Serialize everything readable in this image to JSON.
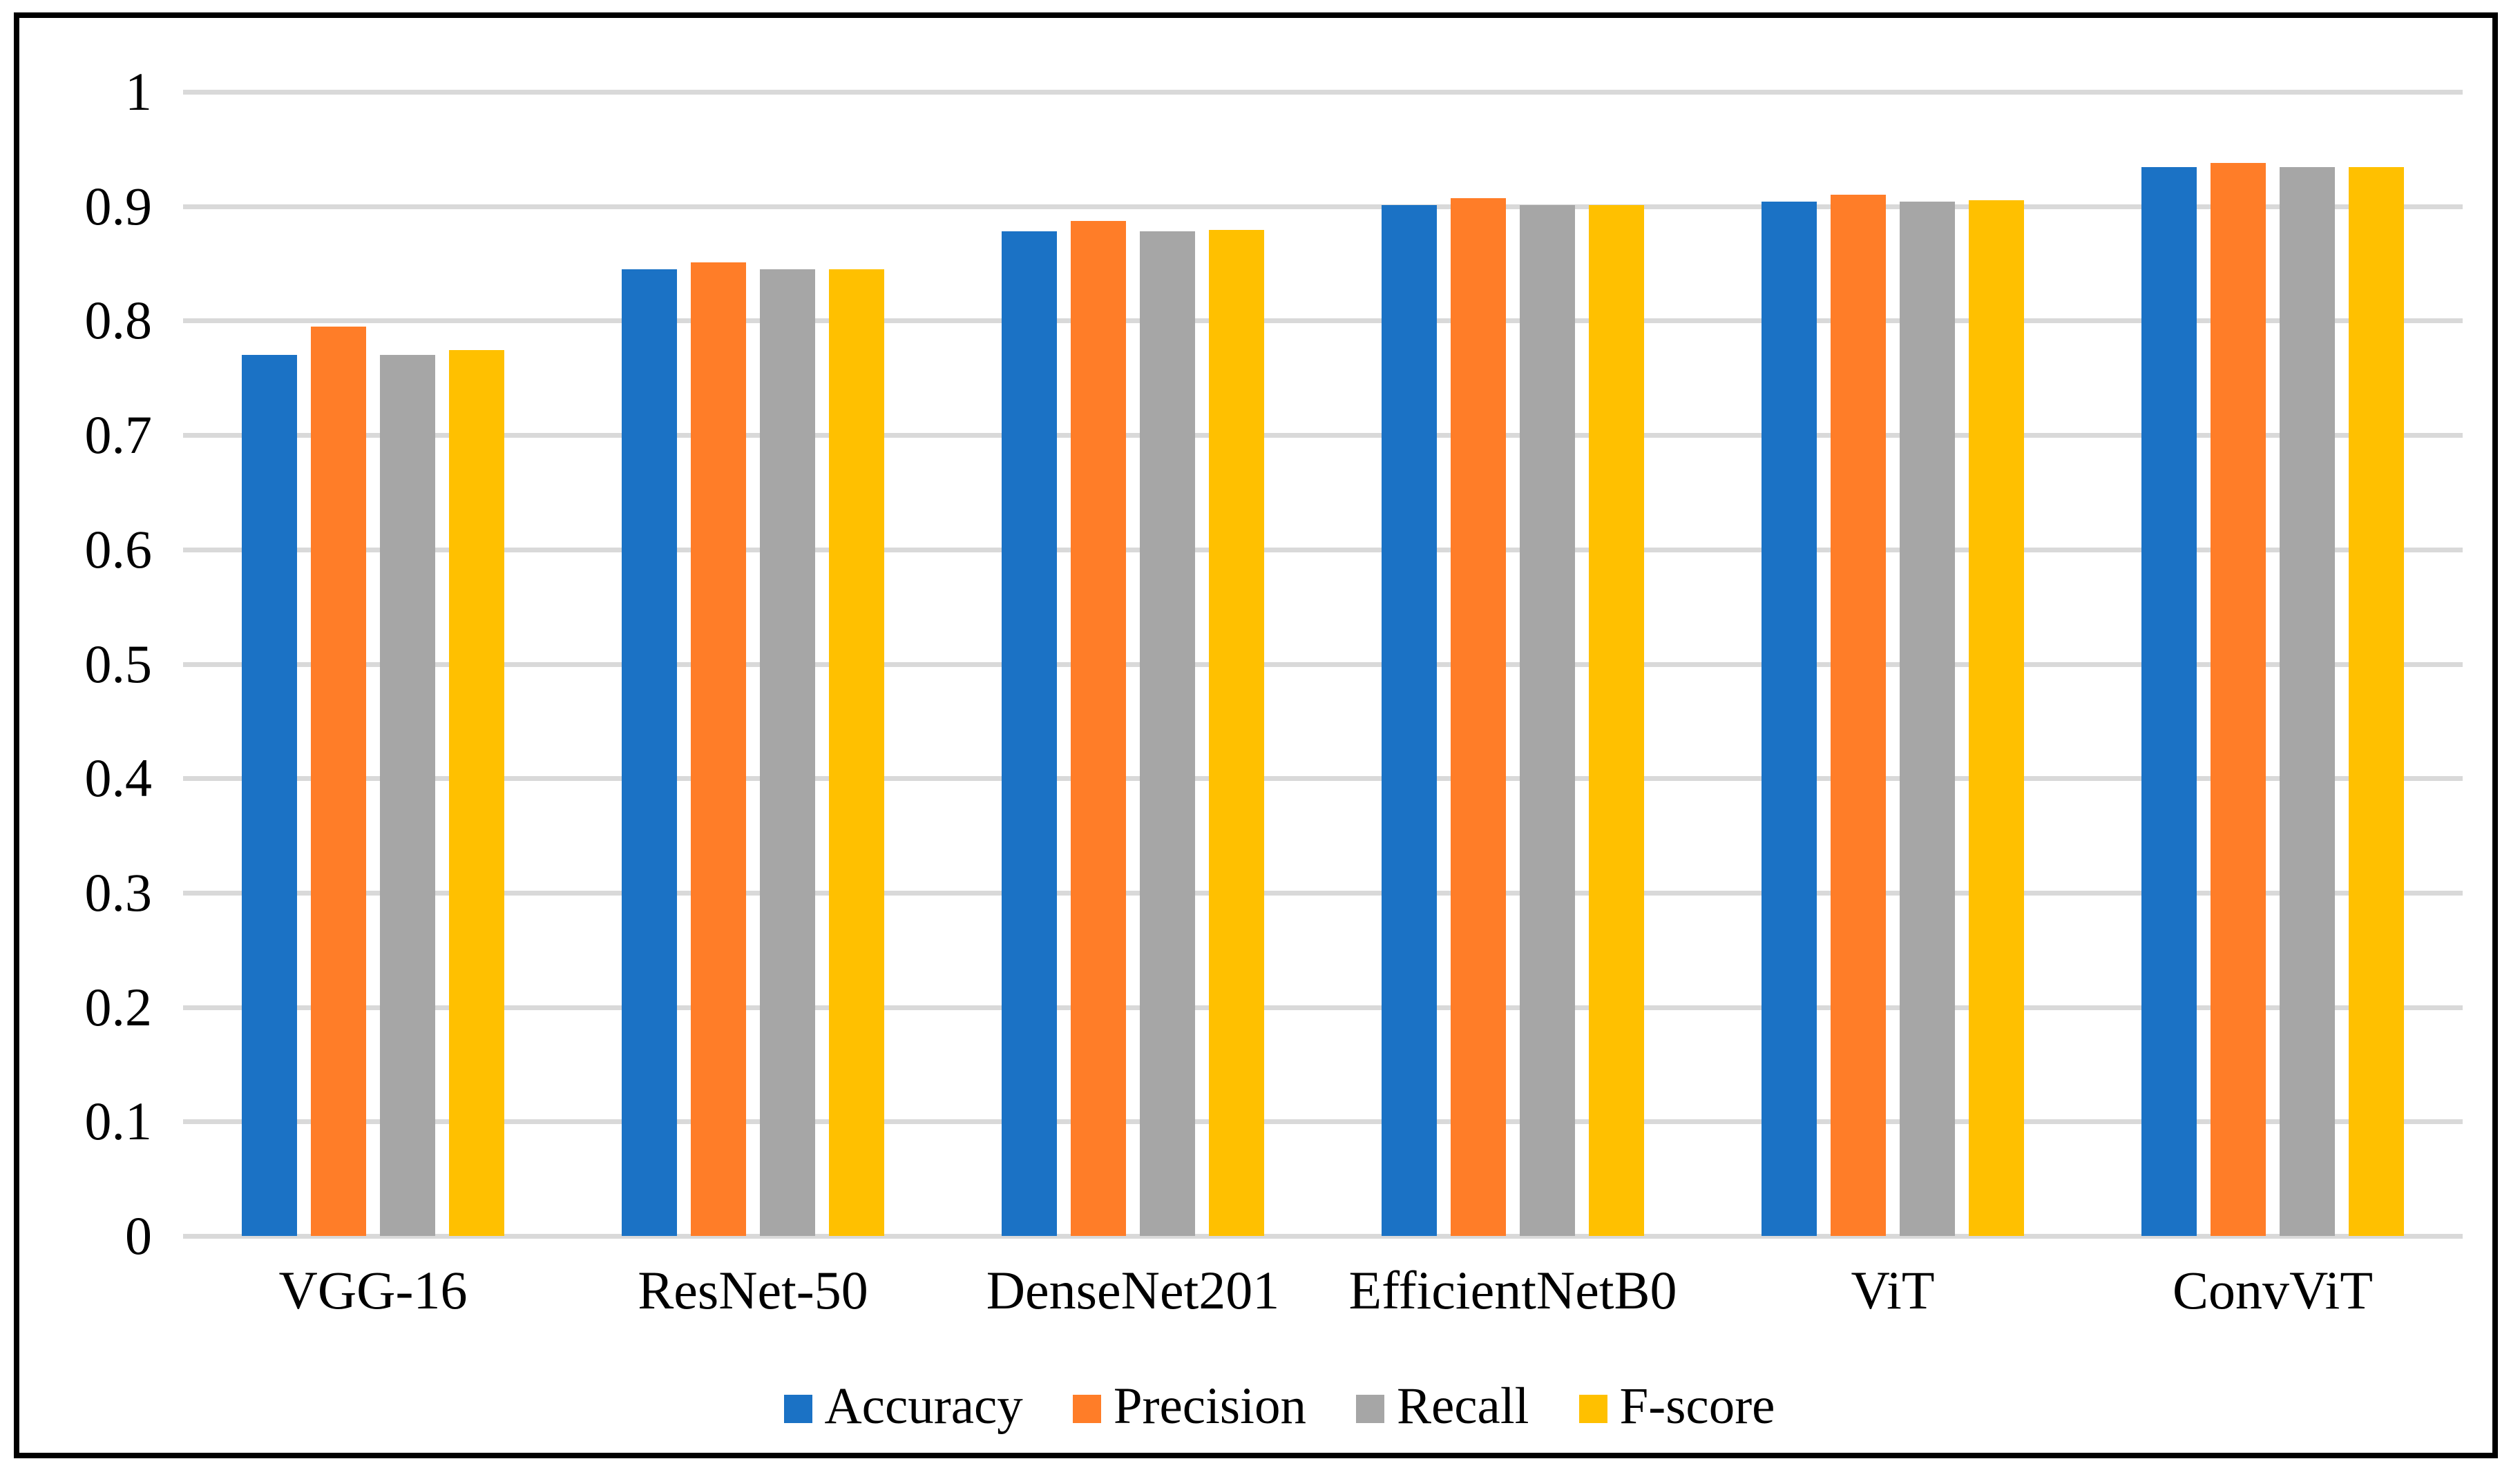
{
  "chart_data": {
    "type": "bar",
    "title": "",
    "xlabel": "",
    "ylabel": "",
    "categories": [
      "VGG-16",
      "ResNet-50",
      "DenseNet201",
      "EfficientNetB0",
      "ViT",
      "ConvViT"
    ],
    "series": [
      {
        "name": "Accuracy",
        "color": "#1B72C5",
        "values": [
          0.77,
          0.845,
          0.878,
          0.901,
          0.904,
          0.934
        ]
      },
      {
        "name": "Precision",
        "color": "#FF7D28",
        "values": [
          0.795,
          0.851,
          0.887,
          0.907,
          0.91,
          0.938
        ]
      },
      {
        "name": "Recall",
        "color": "#A6A6A6",
        "values": [
          0.77,
          0.845,
          0.878,
          0.901,
          0.904,
          0.934
        ]
      },
      {
        "name": "F-score",
        "color": "#FFC000",
        "values": [
          0.774,
          0.845,
          0.879,
          0.901,
          0.905,
          0.934
        ]
      }
    ],
    "ylim": [
      0,
      1
    ],
    "yticks": [
      1,
      0.9,
      0.8,
      0.7,
      0.6,
      0.5,
      0.4,
      0.3,
      0.2,
      0.1,
      0
    ],
    "ytick_labels": [
      "1",
      "0.9",
      "0.8",
      "0.7",
      "0.6",
      "0.5",
      "0.4",
      "0.3",
      "0.2",
      "0.1",
      "0"
    ],
    "grid": true,
    "gridline_color": "#D9D9D9",
    "legend_position": "bottom",
    "background_color": "#FFFFFF",
    "frame_color": "#000000"
  }
}
